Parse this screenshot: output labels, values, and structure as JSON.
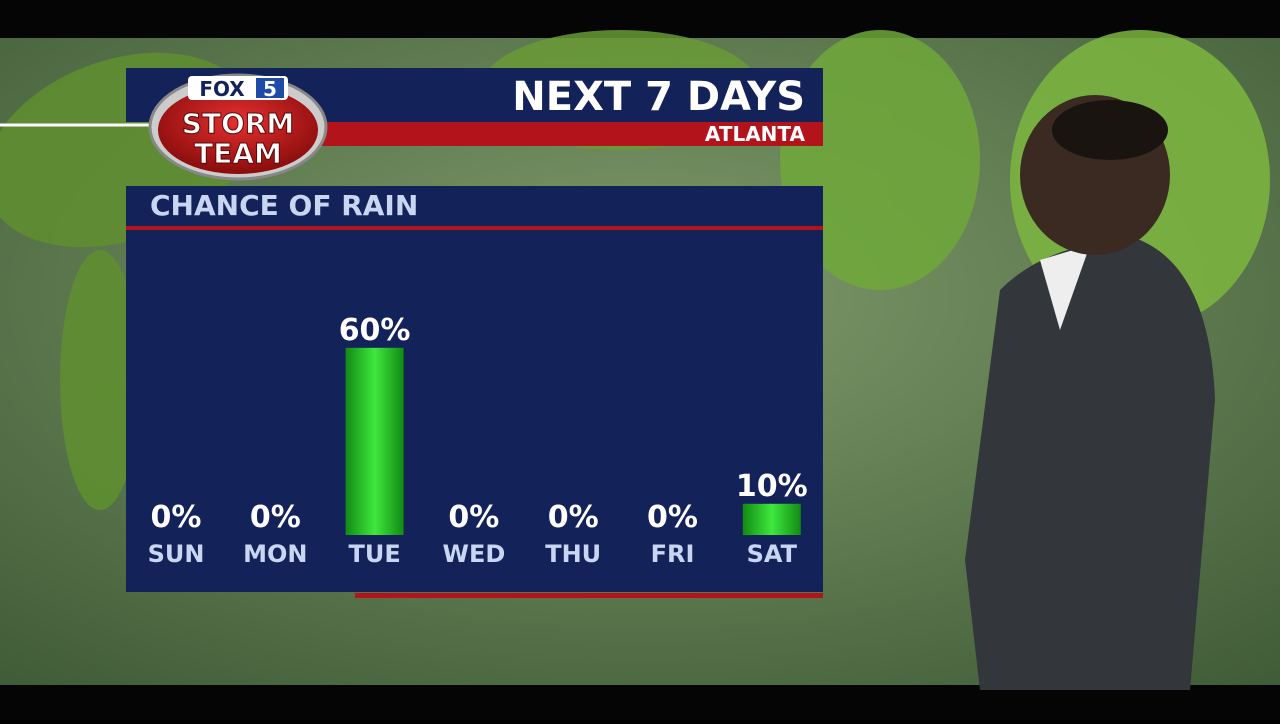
{
  "header": {
    "title": "NEXT 7 DAYS",
    "location": "ATLANTA",
    "logo": {
      "brand": "FOX",
      "channel": "5",
      "line1": "STORM",
      "line2": "TEAM"
    }
  },
  "chart_data": {
    "type": "bar",
    "title": "CHANCE OF RAIN",
    "categories": [
      "SUN",
      "MON",
      "TUE",
      "WED",
      "THU",
      "FRI",
      "SAT"
    ],
    "values": [
      0,
      0,
      60,
      0,
      0,
      0,
      10
    ],
    "value_labels": [
      "0%",
      "0%",
      "60%",
      "0%",
      "0%",
      "0%",
      "10%"
    ],
    "color": "#3ee83e"
  }
}
